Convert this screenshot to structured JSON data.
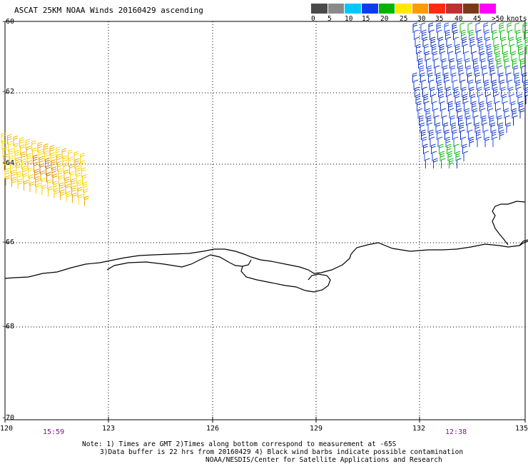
{
  "title": "ASCAT 25KM NOAA Winds 20160429 ascending",
  "color_scale": {
    "labels": [
      "0",
      "5",
      "10",
      "15",
      "20",
      "25",
      "30",
      "35",
      "40",
      "45",
      ">50",
      "knots"
    ],
    "colors": [
      "#4a4a4a",
      "#8a8a8a",
      "#00c8ff",
      "#0a3cf0",
      "#00b400",
      "#ffe800",
      "#ff9a00",
      "#ff2a10",
      "#c03030",
      "#7a3a18",
      "#ff00ff",
      "#8000ff"
    ]
  },
  "axes": {
    "lat_labels": [
      "-60",
      "-62",
      "-64",
      "-66",
      "-68",
      "-70"
    ],
    "lon_labels": [
      "120",
      "123",
      "126",
      "129",
      "132",
      "135"
    ]
  },
  "times": [
    "15:59",
    "12:38"
  ],
  "notes": {
    "line1": "Note: 1) Times are GMT 2)Times along bottom correspond to measurement at -65S",
    "line2": "3)Data buffer is 22 hrs from 20160429 4) Black wind barbs indicate possible contamination",
    "line3": "NOAA/NESDIS/Center for Satellite Applications and Research"
  }
}
